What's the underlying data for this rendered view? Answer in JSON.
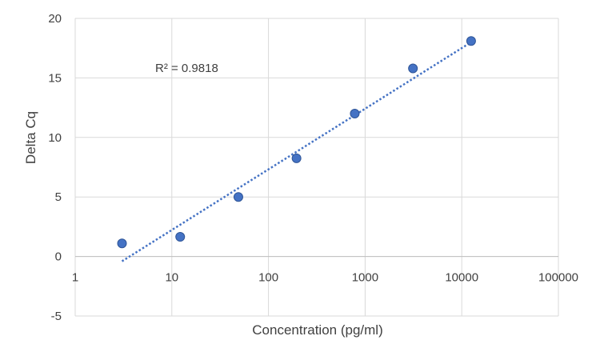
{
  "chart_data": {
    "type": "scatter",
    "xlabel": "Concentration (pg/ml)",
    "ylabel": "Delta Cq",
    "x_scale": "log10",
    "xlim": [
      1,
      100000
    ],
    "ylim": [
      -5,
      20
    ],
    "x_ticks": [
      1,
      10,
      100,
      1000,
      10000,
      100000
    ],
    "x_tick_labels": [
      "1",
      "10",
      "100",
      "1000",
      "10000",
      "100000"
    ],
    "y_ticks": [
      -5,
      0,
      5,
      10,
      15,
      20
    ],
    "y_tick_labels": [
      "-5",
      "0",
      "5",
      "10",
      "15",
      "20"
    ],
    "grid": true,
    "series": [
      {
        "x": [
          3.05,
          12.2,
          48.8,
          195,
          781,
          3125,
          12500
        ],
        "y": [
          1.1,
          1.65,
          5.0,
          8.25,
          12.0,
          15.8,
          18.1
        ],
        "color": "#4472C4"
      }
    ],
    "trendline": {
      "type": "logarithmic",
      "x_start": 3.05,
      "x_end": 12500,
      "y_start": -0.4,
      "y_end": 18.0,
      "color": "#4472C4",
      "style": "dotted"
    },
    "annotation": "R² = 0.9818"
  }
}
